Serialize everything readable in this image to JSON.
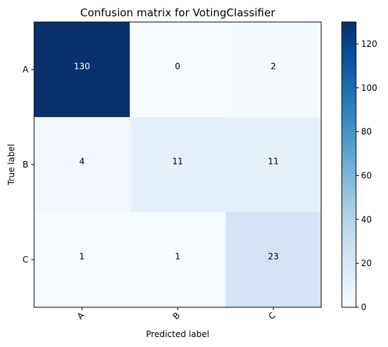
{
  "chart_data": {
    "type": "heatmap",
    "title": "Confusion matrix for VotingClassifier",
    "xlabel": "Predicted label",
    "ylabel": "True label",
    "x_categories": [
      "A",
      "B",
      "C"
    ],
    "y_categories": [
      "A",
      "B",
      "C"
    ],
    "values": [
      [
        130,
        0,
        2
      ],
      [
        4,
        11,
        11
      ],
      [
        1,
        1,
        23
      ]
    ],
    "colormap": "Blues",
    "vmin": 0,
    "vmax": 130,
    "colorbar_ticks": [
      0,
      20,
      40,
      60,
      80,
      100,
      120
    ],
    "colorbar_tick_labels": [
      "0",
      "20",
      "40",
      "60",
      "80",
      "100",
      "120"
    ],
    "text_color_light": "#ffffff",
    "text_color_dark": "#000000"
  }
}
